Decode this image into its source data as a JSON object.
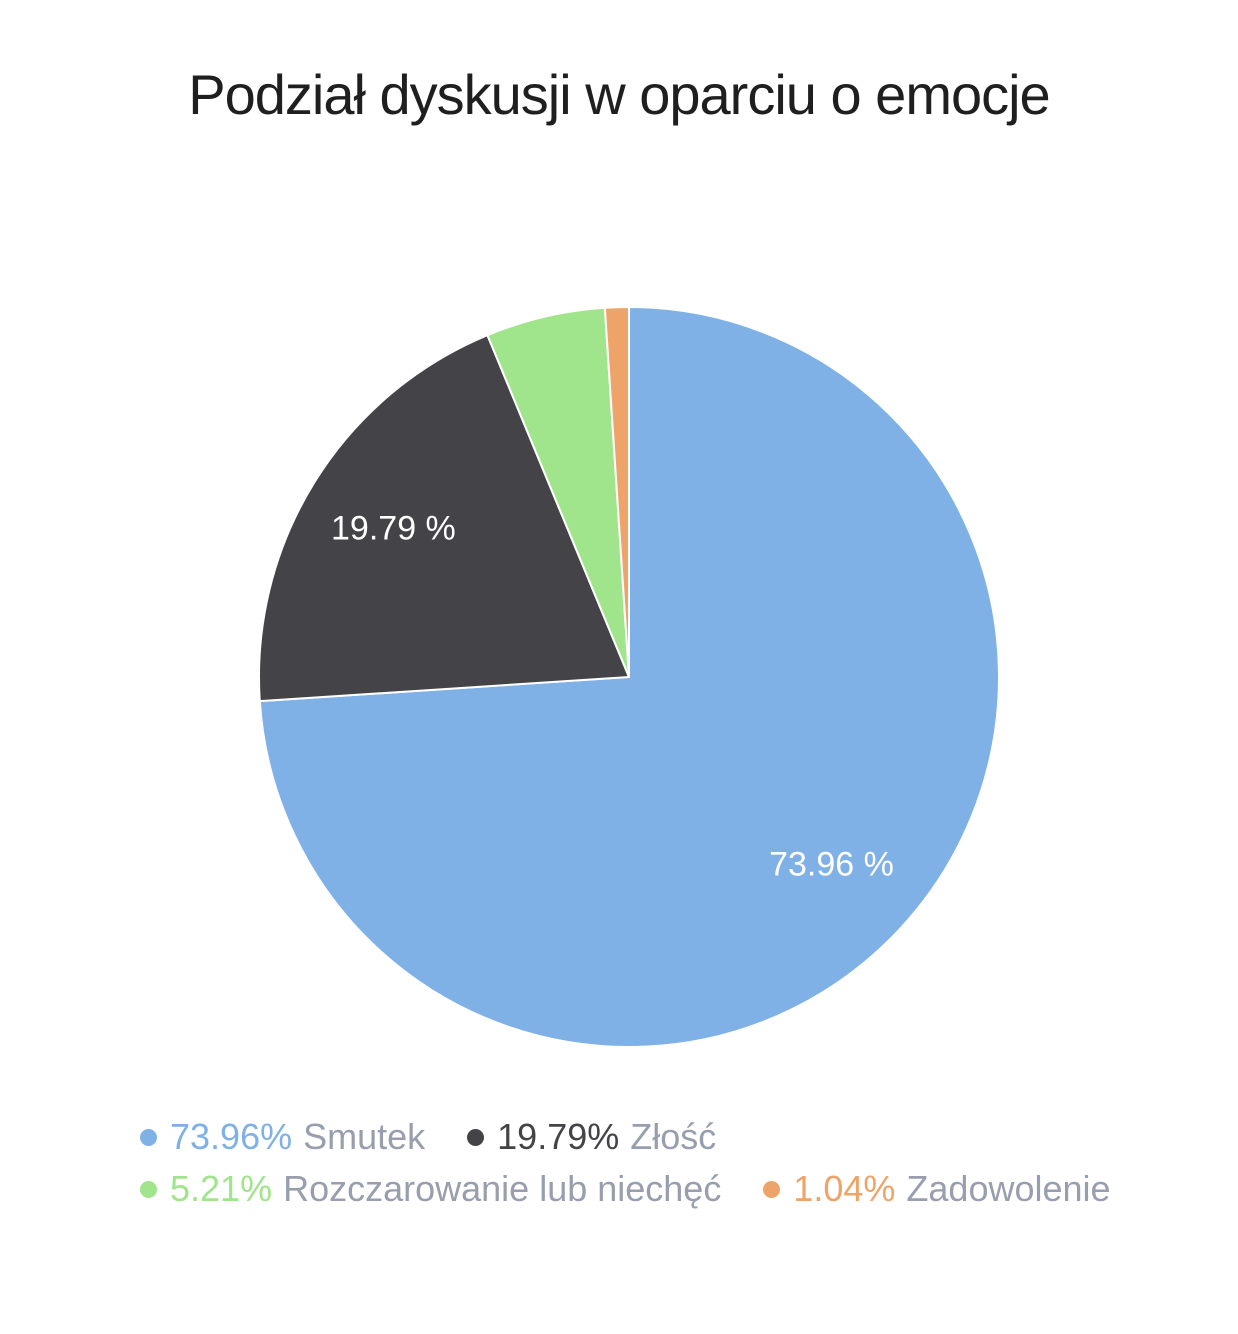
{
  "title": "Podział dyskusji w oparciu o emocje",
  "colors": {
    "background": "#ffffff",
    "title_text": "#1f1f1f",
    "legend_name_text": "#989eae",
    "slice_border": "#ffffff",
    "slice_label_text": "#ffffff"
  },
  "chart_data": {
    "type": "pie",
    "title": "Podział dyskusji w oparciu o emocje",
    "start_angle_deg": 0,
    "direction": "clockwise",
    "total": 100,
    "legend_position": "bottom-left",
    "legend_rows": 2,
    "series": [
      {
        "name": "Smutek",
        "value": 73.96,
        "percent_label": "73.96%",
        "slice_label": "73.96 %",
        "color": "#7fb1e6"
      },
      {
        "name": "Złość",
        "value": 19.79,
        "percent_label": "19.79%",
        "slice_label": "19.79 %",
        "color": "#434348"
      },
      {
        "name": "Rozczarowanie lub niechęć",
        "value": 5.21,
        "percent_label": "5.21%",
        "slice_label": "",
        "color": "#a0e58c"
      },
      {
        "name": "Zadowolenie",
        "value": 1.04,
        "percent_label": "1.04%",
        "slice_label": "",
        "color": "#eea469"
      }
    ]
  }
}
